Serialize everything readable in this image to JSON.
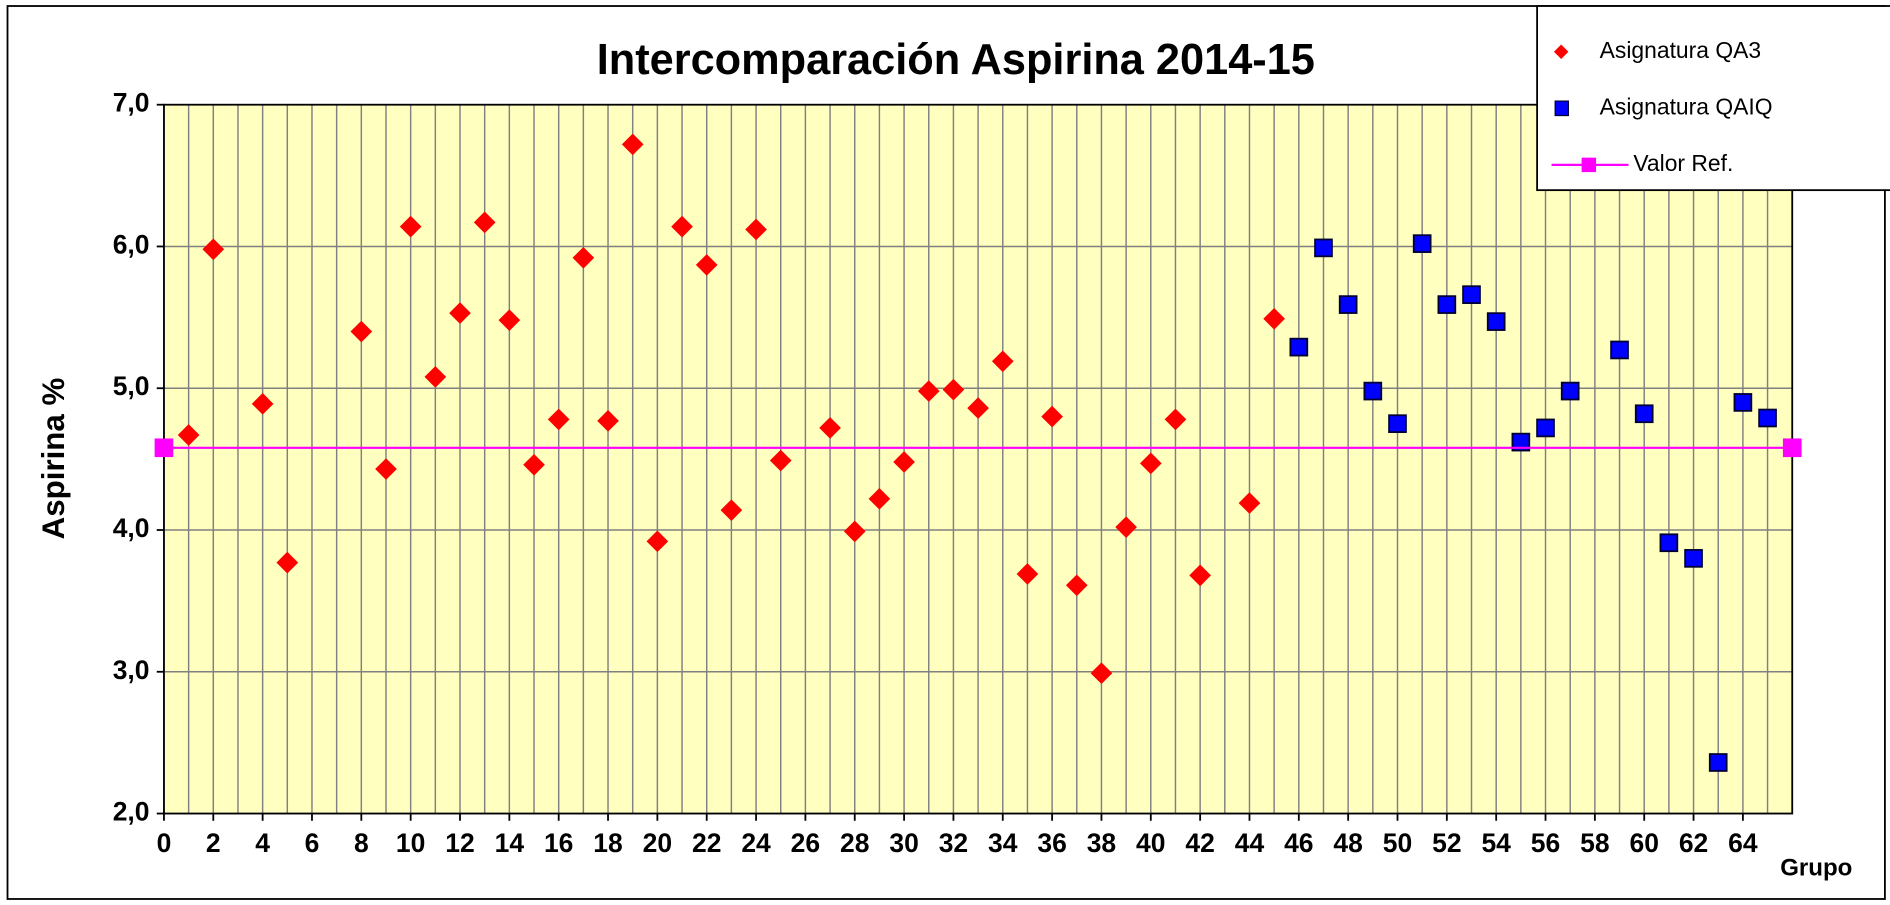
{
  "chart_data": {
    "type": "scatter",
    "title": "Intercomparación Aspirina 2014-15",
    "x_label": "Grupo",
    "y_label": "Aspirina %",
    "xlim": [
      0,
      66
    ],
    "ylim": [
      2,
      7
    ],
    "xticks": [
      0,
      2,
      4,
      6,
      8,
      10,
      12,
      14,
      16,
      18,
      20,
      22,
      24,
      26,
      28,
      30,
      32,
      34,
      36,
      38,
      40,
      42,
      44,
      46,
      48,
      50,
      52,
      54,
      56,
      58,
      60,
      62,
      64
    ],
    "yticks": [
      {
        "value": 2,
        "label": "2,0"
      },
      {
        "value": 3,
        "label": "3,0"
      },
      {
        "value": 4,
        "label": "4,0"
      },
      {
        "value": 5,
        "label": "5,0"
      },
      {
        "value": 6,
        "label": "6,0"
      },
      {
        "value": 7,
        "label": "7,0"
      }
    ],
    "grid": true,
    "legend": "top-right",
    "series": [
      {
        "name": "Asignatura QA3",
        "color": "#ff0000",
        "marker": "diamond",
        "x": [
          1,
          2,
          4,
          5,
          8,
          9,
          10,
          11,
          12,
          13,
          14,
          15,
          16,
          17,
          18,
          19,
          20,
          21,
          22,
          23,
          24,
          25,
          27,
          28,
          29,
          30,
          31,
          32,
          33,
          34,
          35,
          36,
          37,
          38,
          39,
          40,
          41,
          42,
          44,
          45
        ],
        "values": [
          4.67,
          5.98,
          4.89,
          3.77,
          5.4,
          4.43,
          6.14,
          5.08,
          5.53,
          6.17,
          5.48,
          4.46,
          4.78,
          5.92,
          4.77,
          6.72,
          3.92,
          6.14,
          5.87,
          4.14,
          6.12,
          4.49,
          4.72,
          3.99,
          4.22,
          4.48,
          4.98,
          4.99,
          4.86,
          5.19,
          3.69,
          4.8,
          3.61,
          2.99,
          4.02,
          4.47,
          4.78,
          3.68,
          4.19,
          5.49
        ]
      },
      {
        "name": "Asignatura QAIQ",
        "color": "#0000ff",
        "marker": "square",
        "x": [
          46,
          47,
          48,
          49,
          50,
          51,
          52,
          53,
          54,
          55,
          56,
          57,
          59,
          60,
          61,
          62,
          63,
          64,
          65
        ],
        "values": [
          5.29,
          5.99,
          5.59,
          4.98,
          4.75,
          6.02,
          5.59,
          5.66,
          5.47,
          4.62,
          4.72,
          4.98,
          5.27,
          4.82,
          3.91,
          3.8,
          2.36,
          4.9,
          4.79
        ]
      },
      {
        "name": "Valor Ref.",
        "color": "#ff00ff",
        "marker": "line",
        "x": [
          0,
          66
        ],
        "values": [
          4.58,
          4.58
        ]
      }
    ]
  }
}
